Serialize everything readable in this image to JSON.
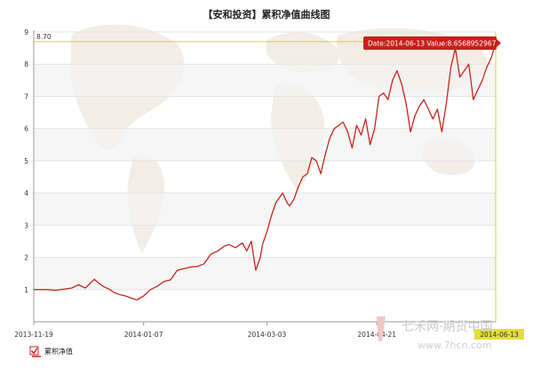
{
  "chart_data": {
    "type": "line",
    "title": "【安和投资】累积净值曲线图",
    "xlabel": "",
    "ylabel": "",
    "ylim": [
      0,
      9
    ],
    "y_ticks": [
      "1",
      "2",
      "3",
      "4",
      "5",
      "6",
      "7",
      "8",
      "9"
    ],
    "x_ticks": [
      "2013-11-19",
      "2014-01-07",
      "2014-03-03",
      "2014-04-21"
    ],
    "x_range": [
      "2013-11-19",
      "2014-06-13"
    ],
    "grid": true,
    "legend_position": "bottom-left",
    "max_label": "8.70",
    "max_value": 8.7,
    "tooltip": {
      "text": "Date:2014-06-13  Value:8.6568952967"
    },
    "crosshair_label": "2014-06-13",
    "series": [
      {
        "name": "累积净值",
        "color": "#c0271d",
        "x": [
          "2013-11-19",
          "2013-11-25",
          "2013-11-29",
          "2013-12-03",
          "2013-12-06",
          "2013-12-09",
          "2013-12-12",
          "2013-12-16",
          "2013-12-18",
          "2013-12-20",
          "2013-12-23",
          "2013-12-25",
          "2013-12-27",
          "2013-12-30",
          "2014-01-02",
          "2014-01-04",
          "2014-01-07",
          "2014-01-10",
          "2014-01-13",
          "2014-01-16",
          "2014-01-19",
          "2014-01-22",
          "2014-01-25",
          "2014-01-28",
          "2014-01-31",
          "2014-02-03",
          "2014-02-06",
          "2014-02-09",
          "2014-02-12",
          "2014-02-14",
          "2014-02-17",
          "2014-02-20",
          "2014-02-22",
          "2014-02-24",
          "2014-02-26",
          "2014-02-28",
          "2014-03-01",
          "2014-03-03",
          "2014-03-05",
          "2014-03-07",
          "2014-03-10",
          "2014-03-12",
          "2014-03-13",
          "2014-03-15",
          "2014-03-17",
          "2014-03-19",
          "2014-03-21",
          "2014-03-23",
          "2014-03-25",
          "2014-03-27",
          "2014-03-29",
          "2014-03-31",
          "2014-04-02",
          "2014-04-04",
          "2014-04-06",
          "2014-04-08",
          "2014-04-10",
          "2014-04-12",
          "2014-04-14",
          "2014-04-16",
          "2014-04-18",
          "2014-04-20",
          "2014-04-22",
          "2014-04-24",
          "2014-04-26",
          "2014-04-28",
          "2014-04-30",
          "2014-05-02",
          "2014-05-04",
          "2014-05-06",
          "2014-05-08",
          "2014-05-10",
          "2014-05-12",
          "2014-05-14",
          "2014-05-16",
          "2014-05-18",
          "2014-05-20",
          "2014-05-22",
          "2014-05-24",
          "2014-05-26",
          "2014-05-28",
          "2014-05-30",
          "2014-06-01",
          "2014-06-03",
          "2014-06-05",
          "2014-06-07",
          "2014-06-09",
          "2014-06-11",
          "2014-06-13"
        ],
        "values": [
          1.0,
          1.0,
          0.98,
          1.02,
          1.05,
          1.15,
          1.05,
          1.32,
          1.2,
          1.1,
          1.0,
          0.9,
          0.85,
          0.8,
          0.72,
          0.68,
          0.8,
          1.0,
          1.1,
          1.25,
          1.3,
          1.6,
          1.65,
          1.7,
          1.72,
          1.8,
          2.1,
          2.2,
          2.35,
          2.4,
          2.3,
          2.45,
          2.2,
          2.5,
          1.6,
          2.0,
          2.4,
          2.8,
          3.3,
          3.7,
          4.0,
          3.7,
          3.6,
          3.8,
          4.2,
          4.5,
          4.6,
          5.1,
          5.0,
          4.6,
          5.2,
          5.7,
          6.0,
          6.1,
          6.2,
          5.9,
          5.4,
          6.1,
          5.8,
          6.3,
          5.5,
          6.0,
          7.0,
          7.1,
          6.9,
          7.5,
          7.8,
          7.4,
          6.8,
          5.9,
          6.4,
          6.7,
          6.9,
          6.6,
          6.3,
          6.6,
          5.9,
          6.8,
          7.9,
          8.5,
          7.6,
          7.8,
          8.0,
          6.9,
          7.2,
          7.5,
          7.9,
          8.2,
          8.66
        ]
      }
    ]
  },
  "watermark": {
    "brand_cn": "七禾网·期货中国",
    "brand_url": "www.7hcn.com"
  }
}
